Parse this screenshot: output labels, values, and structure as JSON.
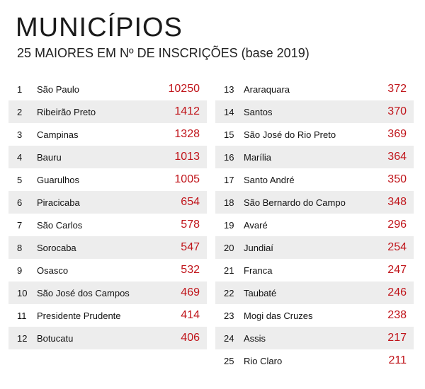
{
  "title": "MUNICÍPIOS",
  "subtitle": "25 MAIORES EM Nº DE INSCRIÇÕES (base 2019)",
  "colors": {
    "accent": "#c0141a",
    "stripe": "#ededed"
  },
  "rows": [
    {
      "rank": "1",
      "name": "São Paulo",
      "value": "10250"
    },
    {
      "rank": "2",
      "name": "Ribeirão Preto",
      "value": "1412"
    },
    {
      "rank": "3",
      "name": "Campinas",
      "value": "1328"
    },
    {
      "rank": "4",
      "name": "Bauru",
      "value": "1013"
    },
    {
      "rank": "5",
      "name": "Guarulhos",
      "value": "1005"
    },
    {
      "rank": "6",
      "name": "Piracicaba",
      "value": "654"
    },
    {
      "rank": "7",
      "name": "São Carlos",
      "value": "578"
    },
    {
      "rank": "8",
      "name": "Sorocaba",
      "value": "547"
    },
    {
      "rank": "9",
      "name": "Osasco",
      "value": "532"
    },
    {
      "rank": "10",
      "name": "São José dos Campos",
      "value": "469"
    },
    {
      "rank": "11",
      "name": "Presidente Prudente",
      "value": "414"
    },
    {
      "rank": "12",
      "name": "Botucatu",
      "value": "406"
    },
    {
      "rank": "13",
      "name": "Araraquara",
      "value": "372"
    },
    {
      "rank": "14",
      "name": "Santos",
      "value": "370"
    },
    {
      "rank": "15",
      "name": "São José do Rio Preto",
      "value": "369"
    },
    {
      "rank": "16",
      "name": "Marília",
      "value": "364"
    },
    {
      "rank": "17",
      "name": "Santo André",
      "value": "350"
    },
    {
      "rank": "18",
      "name": "São Bernardo do Campo",
      "value": "348"
    },
    {
      "rank": "19",
      "name": "Avaré",
      "value": "296"
    },
    {
      "rank": "20",
      "name": "Jundiaí",
      "value": "254"
    },
    {
      "rank": "21",
      "name": "Franca",
      "value": "247"
    },
    {
      "rank": "22",
      "name": "Taubaté",
      "value": "246"
    },
    {
      "rank": "23",
      "name": "Mogi das Cruzes",
      "value": "238"
    },
    {
      "rank": "24",
      "name": "Assis",
      "value": "217"
    },
    {
      "rank": "25",
      "name": "Rio Claro",
      "value": "211"
    }
  ]
}
